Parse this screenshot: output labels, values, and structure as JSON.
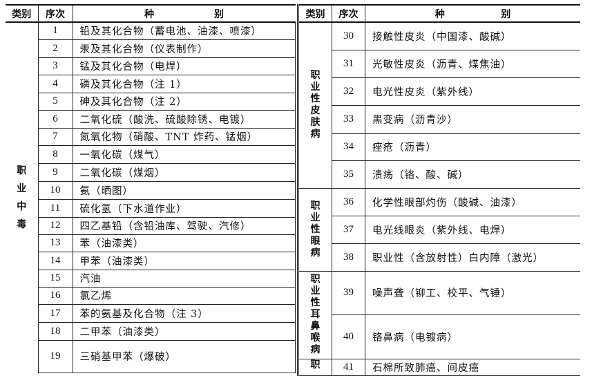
{
  "header": {
    "category": "类别",
    "number": "序次",
    "kind_1": "种",
    "kind_2": "别"
  },
  "left": {
    "category": "职业中毒",
    "rows": [
      {
        "no": "1",
        "name": "铅及其化合物（蓄电池、油漆、喷漆）"
      },
      {
        "no": "2",
        "name": "汞及其化合物（仪表制作）"
      },
      {
        "no": "3",
        "name": "锰及其化合物（电焊）"
      },
      {
        "no": "4",
        "name": "磷及其化合物（注 1）"
      },
      {
        "no": "5",
        "name": "砷及其化合物（注 2）"
      },
      {
        "no": "6",
        "name": "二氧化硫（酸洗、硫酸除锈、电镀）"
      },
      {
        "no": "7",
        "name": "氮氧化物（硝酸、TNT 炸药、锰烟）"
      },
      {
        "no": "8",
        "name": "一氧化碳（煤气）"
      },
      {
        "no": "9",
        "name": "二氧化碳（煤烟）"
      },
      {
        "no": "10",
        "name": "氨（晒图）"
      },
      {
        "no": "11",
        "name": "硫化氢（下水道作业）"
      },
      {
        "no": "12",
        "name": "四乙基铅（含铅油库、驾驶、汽修）"
      },
      {
        "no": "13",
        "name": "苯（油漆类）"
      },
      {
        "no": "14",
        "name": "甲苯（油漆类）"
      },
      {
        "no": "15",
        "name": "汽油"
      },
      {
        "no": "16",
        "name": "氯乙烯"
      },
      {
        "no": "17",
        "name": "苯的氨基及化合物（注 3）"
      },
      {
        "no": "18",
        "name": "二甲苯（油漆类）"
      },
      {
        "no": "19",
        "name": "三硝基甲苯（爆破）"
      }
    ]
  },
  "right": {
    "groups": [
      {
        "category": "职业性皮肤病",
        "rows": [
          {
            "no": "30",
            "name": "接触性皮炎（中国漆、酸碱）"
          },
          {
            "no": "31",
            "name": "光敏性皮炎（沥青、煤焦油）"
          },
          {
            "no": "32",
            "name": "电光性皮炎（紫外线）"
          },
          {
            "no": "33",
            "name": "黑变病（沥青沙）"
          },
          {
            "no": "34",
            "name": "痤疮（沥青）"
          },
          {
            "no": "35",
            "name": "溃疡（铬、酸、碱）"
          }
        ]
      },
      {
        "category": "职业性眼病",
        "rows": [
          {
            "no": "36",
            "name": "化学性眼部灼伤（酸碱、油漆）"
          },
          {
            "no": "37",
            "name": "电光线眼炎（紫外线、电焊）"
          },
          {
            "no": "38",
            "name": "职业性（含放射性）白内障（激光）"
          }
        ]
      },
      {
        "category": "职业性耳鼻喉病",
        "rows": [
          {
            "no": "39",
            "name": "噪声聋（铆工、校平、气锤）"
          },
          {
            "no": "40",
            "name": "铬鼻病（电镀病）"
          }
        ]
      },
      {
        "category": "职",
        "rows": [
          {
            "no": "41",
            "name": "石棉所致肺癌、间皮癌"
          }
        ]
      }
    ]
  }
}
